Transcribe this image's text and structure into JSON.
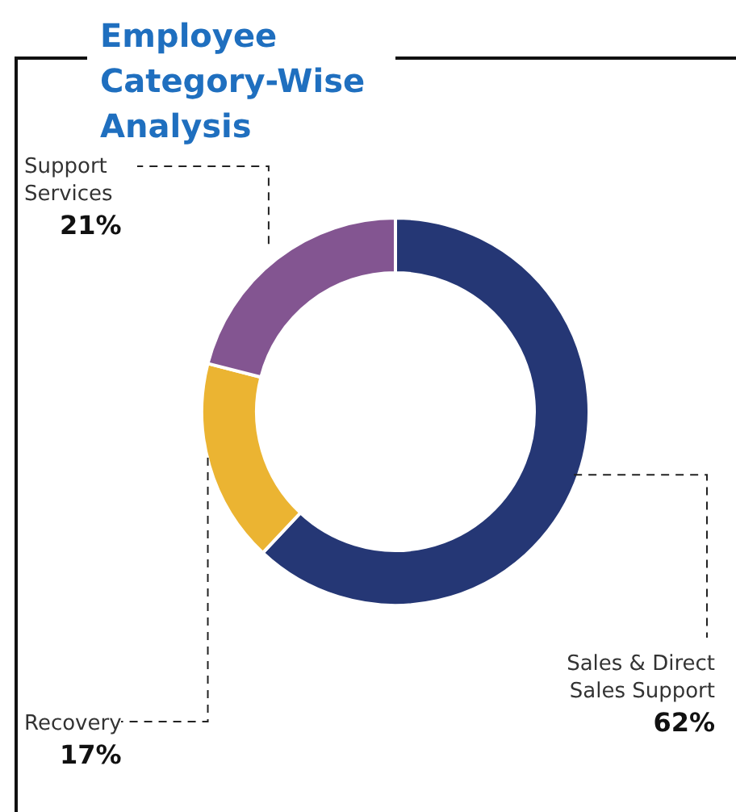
{
  "chart_data": {
    "type": "donut",
    "title": "Employee Category-Wise Analysis",
    "categories": [
      "Sales & Direct Sales Support",
      "Recovery",
      "Support Services"
    ],
    "values": [
      62,
      17,
      21
    ],
    "colors": [
      "#253775",
      "#ebb432",
      "#835591"
    ],
    "value_labels": [
      "62%",
      "17%",
      "21%"
    ]
  }
}
